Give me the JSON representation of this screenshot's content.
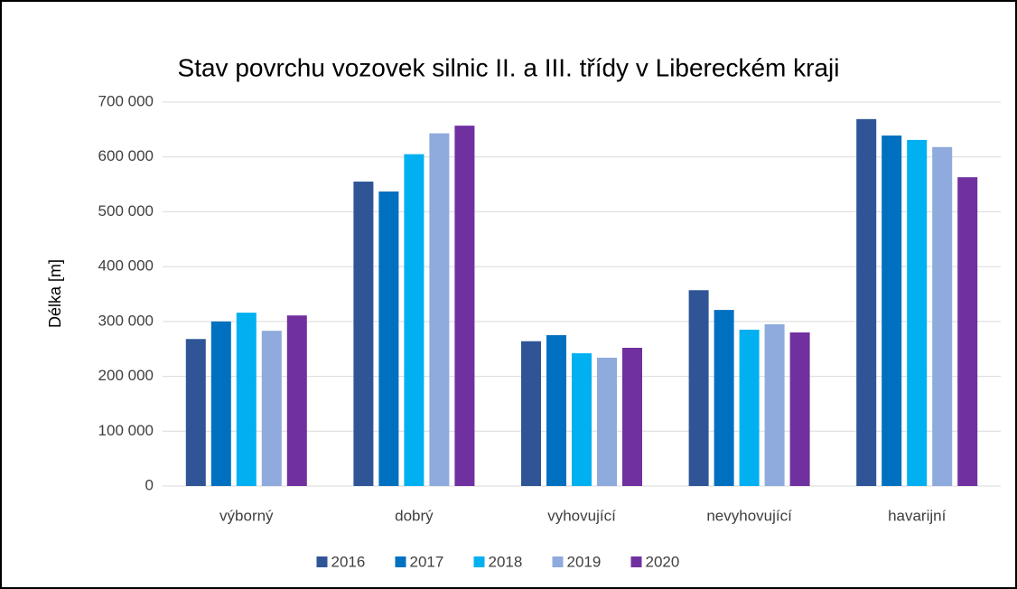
{
  "chart_data": {
    "type": "bar",
    "title": "Stav povrchu vozovek silnic II. a III. třídy v Libereckém kraji",
    "y_label": "Délka [m]",
    "categories": [
      "výborný",
      "dobrý",
      "vyhovující",
      "nevyhovující",
      "havarijní"
    ],
    "series": [
      {
        "name": "2016",
        "color": "#2f5597",
        "values": [
          268000,
          555000,
          264000,
          357000,
          669000
        ]
      },
      {
        "name": "2017",
        "color": "#0070c0",
        "values": [
          300000,
          537000,
          275000,
          321000,
          639000
        ]
      },
      {
        "name": "2018",
        "color": "#00b0f0",
        "values": [
          316000,
          605000,
          242000,
          285000,
          631000
        ]
      },
      {
        "name": "2019",
        "color": "#8faadc",
        "values": [
          283000,
          643000,
          234000,
          295000,
          618000
        ]
      },
      {
        "name": "2020",
        "color": "#7030a0",
        "values": [
          311000,
          657000,
          252000,
          280000,
          563000
        ]
      }
    ],
    "ylim": [
      0,
      700000
    ],
    "yticks": [
      0,
      {
        "value": 100000,
        "label": "100 000"
      },
      {
        "value": 200000,
        "label": "200 000"
      },
      {
        "value": 300000,
        "label": "300 000"
      },
      {
        "value": 400000,
        "label": "400 000"
      },
      {
        "value": 500000,
        "label": "500 000"
      },
      {
        "value": 600000,
        "label": "600 000"
      },
      {
        "value": 700000,
        "label": "700 000"
      }
    ],
    "grid": true,
    "legend": "bottom"
  }
}
